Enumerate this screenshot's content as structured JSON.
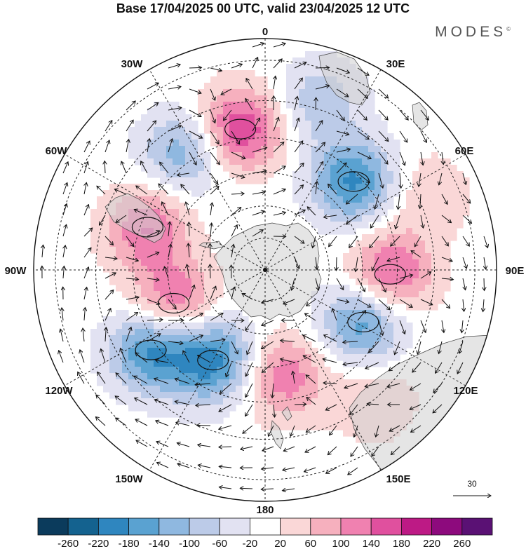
{
  "title": "Base 17/04/2025 00 UTC, valid 23/04/2025 12 UTC",
  "brand": "MODES",
  "brand_mark": "©",
  "map": {
    "projection": "south-polar-stereographic",
    "longitude_labels": {
      "0": "0",
      "30E": "30E",
      "60E": "60E",
      "90E": "90E",
      "120E": "120E",
      "150E": "150E",
      "180": "180",
      "150W": "150W",
      "120W": "120W",
      "90W": "90W",
      "60W": "60W",
      "30W": "30W"
    },
    "reference_vector": {
      "label": "30",
      "magnitude": 30
    },
    "anomaly_centers": [
      {
        "lon": -10,
        "lat": -47,
        "value": 180
      },
      {
        "lon": 45,
        "lat": -52,
        "value": -190
      },
      {
        "lon": 92,
        "lat": -52,
        "value": 160
      },
      {
        "lon": 118,
        "lat": -56,
        "value": -170
      },
      {
        "lon": 170,
        "lat": -57,
        "value": 130
      },
      {
        "lon": -150,
        "lat": -58,
        "value": -200
      },
      {
        "lon": -125,
        "lat": -48,
        "value": -190
      },
      {
        "lon": -110,
        "lat": -60,
        "value": 150
      },
      {
        "lon": -70,
        "lat": -52,
        "value": 140
      },
      {
        "lon": -35,
        "lat": -47,
        "value": -130
      },
      {
        "lon": 18,
        "lat": -38,
        "value": -90
      },
      {
        "lon": 65,
        "lat": -38,
        "value": 60
      },
      {
        "lon": 140,
        "lat": -40,
        "value": 60
      }
    ]
  },
  "colorbar": {
    "ticks": [
      "-260",
      "-220",
      "-180",
      "-140",
      "-100",
      "-60",
      "-20",
      "20",
      "60",
      "100",
      "140",
      "180",
      "220",
      "260"
    ],
    "colors": [
      "#0b3b5c",
      "#14628f",
      "#2f86bf",
      "#5aa2d1",
      "#8fb8e0",
      "#bccbe8",
      "#e2e2f2",
      "#ffffff",
      "#fad7d7",
      "#f6b0be",
      "#f081b0",
      "#e0509e",
      "#bd1a85",
      "#8d0a7d",
      "#5a1174"
    ]
  }
}
